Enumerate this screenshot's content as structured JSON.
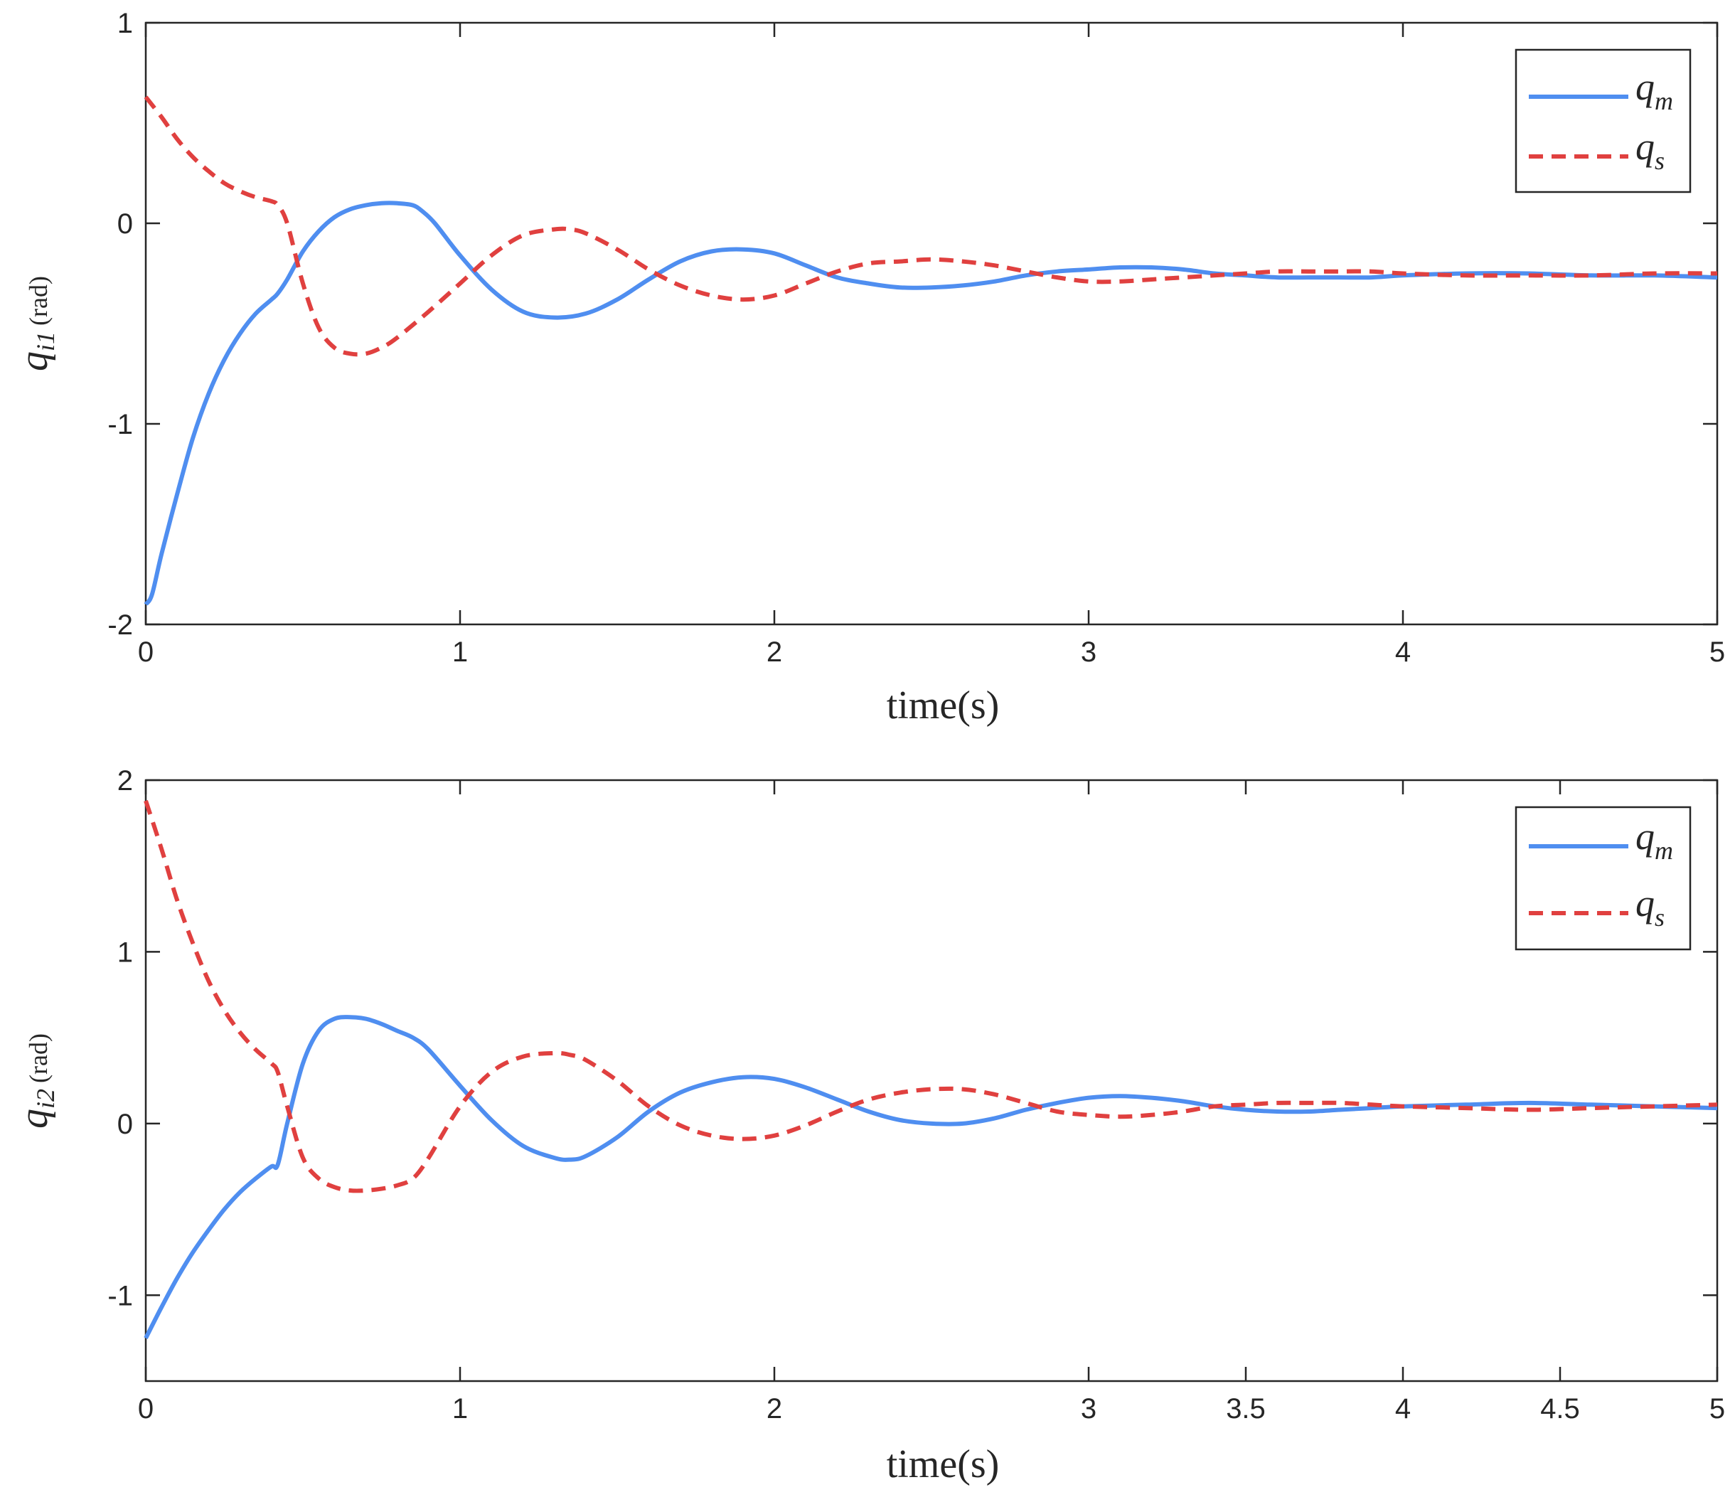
{
  "colors": {
    "q_m": "#4f8ef0",
    "q_s": "#e0403f",
    "axis": "#262626"
  },
  "chart_data": [
    {
      "type": "line",
      "xlabel": "time(s)",
      "ylabel": {
        "symbol": "q",
        "subscript": "i1",
        "unit": "(rad)"
      },
      "xlim": [
        0,
        5
      ],
      "ylim": [
        -2,
        1
      ],
      "xticks": [
        0,
        1,
        2,
        3,
        4,
        5
      ],
      "xtick_labels": [
        "0",
        "1",
        "2",
        "3",
        "4",
        "5"
      ],
      "yticks": [
        -2,
        -1,
        0,
        1
      ],
      "ytick_labels": [
        "-2",
        "-1",
        "0",
        "1"
      ],
      "grid": false,
      "legend": {
        "position": "top-right",
        "entries": [
          {
            "symbol": "q",
            "subscript": "m"
          },
          {
            "symbol": "q",
            "subscript": "s"
          }
        ]
      },
      "series": [
        {
          "key": "q_m",
          "style": "solid",
          "x": [
            0,
            0.02,
            0.05,
            0.1,
            0.15,
            0.2,
            0.25,
            0.3,
            0.35,
            0.4,
            0.42,
            0.45,
            0.5,
            0.55,
            0.6,
            0.65,
            0.7,
            0.75,
            0.8,
            0.85,
            0.88,
            0.92,
            1.0,
            1.1,
            1.2,
            1.3,
            1.4,
            1.5,
            1.6,
            1.7,
            1.8,
            1.9,
            2.0,
            2.1,
            2.2,
            2.3,
            2.4,
            2.5,
            2.6,
            2.7,
            2.8,
            2.9,
            3.0,
            3.1,
            3.2,
            3.3,
            3.4,
            3.5,
            3.6,
            3.7,
            3.8,
            3.9,
            4.0,
            4.2,
            4.4,
            4.6,
            4.8,
            5.0
          ],
          "y": [
            -1.9,
            -1.85,
            -1.65,
            -1.35,
            -1.07,
            -0.85,
            -0.68,
            -0.55,
            -0.45,
            -0.38,
            -0.35,
            -0.28,
            -0.14,
            -0.04,
            0.03,
            0.07,
            0.09,
            0.1,
            0.1,
            0.09,
            0.06,
            0.0,
            -0.16,
            -0.33,
            -0.44,
            -0.47,
            -0.45,
            -0.38,
            -0.28,
            -0.19,
            -0.14,
            -0.13,
            -0.15,
            -0.21,
            -0.27,
            -0.3,
            -0.32,
            -0.32,
            -0.31,
            -0.29,
            -0.26,
            -0.24,
            -0.23,
            -0.22,
            -0.22,
            -0.23,
            -0.25,
            -0.26,
            -0.27,
            -0.27,
            -0.27,
            -0.27,
            -0.26,
            -0.25,
            -0.25,
            -0.26,
            -0.26,
            -0.27
          ]
        },
        {
          "key": "q_s",
          "style": "dashed",
          "x": [
            0,
            0.05,
            0.1,
            0.15,
            0.2,
            0.25,
            0.3,
            0.35,
            0.4,
            0.42,
            0.45,
            0.5,
            0.55,
            0.6,
            0.65,
            0.7,
            0.75,
            0.8,
            0.9,
            1.0,
            1.1,
            1.2,
            1.3,
            1.35,
            1.4,
            1.5,
            1.6,
            1.7,
            1.8,
            1.9,
            2.0,
            2.1,
            2.2,
            2.3,
            2.4,
            2.5,
            2.6,
            2.7,
            2.8,
            2.9,
            3.0,
            3.1,
            3.2,
            3.3,
            3.4,
            3.5,
            3.6,
            3.7,
            3.8,
            3.9,
            4.0,
            4.2,
            4.4,
            4.6,
            4.8,
            5.0
          ],
          "y": [
            0.63,
            0.53,
            0.42,
            0.33,
            0.26,
            0.2,
            0.16,
            0.13,
            0.11,
            0.09,
            0.0,
            -0.3,
            -0.52,
            -0.62,
            -0.65,
            -0.65,
            -0.62,
            -0.57,
            -0.44,
            -0.3,
            -0.16,
            -0.06,
            -0.03,
            -0.03,
            -0.05,
            -0.13,
            -0.23,
            -0.31,
            -0.36,
            -0.38,
            -0.36,
            -0.3,
            -0.24,
            -0.2,
            -0.19,
            -0.18,
            -0.19,
            -0.21,
            -0.24,
            -0.27,
            -0.29,
            -0.29,
            -0.28,
            -0.27,
            -0.26,
            -0.25,
            -0.24,
            -0.24,
            -0.24,
            -0.24,
            -0.25,
            -0.26,
            -0.26,
            -0.26,
            -0.25,
            -0.25
          ]
        }
      ]
    },
    {
      "type": "line",
      "xlabel": "time(s)",
      "ylabel": {
        "symbol": "q",
        "subscript": "i2",
        "unit": "(rad)"
      },
      "xlim": [
        0,
        5
      ],
      "ylim": [
        -1.5,
        2
      ],
      "xticks": [
        0,
        1,
        2,
        3,
        3.5,
        4,
        4.5,
        5
      ],
      "xtick_labels": [
        "0",
        "1",
        "2",
        "3",
        "3.5",
        "4",
        "4.5",
        "5"
      ],
      "yticks": [
        -1,
        0,
        1,
        2
      ],
      "ytick_labels": [
        "-1",
        "0",
        "1",
        "2"
      ],
      "grid": false,
      "legend": {
        "position": "top-right",
        "entries": [
          {
            "symbol": "q",
            "subscript": "m"
          },
          {
            "symbol": "q",
            "subscript": "s"
          }
        ]
      },
      "series": [
        {
          "key": "q_m",
          "style": "solid",
          "x": [
            0,
            0.05,
            0.1,
            0.15,
            0.2,
            0.25,
            0.3,
            0.35,
            0.4,
            0.42,
            0.45,
            0.5,
            0.55,
            0.6,
            0.65,
            0.7,
            0.75,
            0.8,
            0.85,
            0.9,
            1.0,
            1.1,
            1.2,
            1.3,
            1.35,
            1.4,
            1.5,
            1.6,
            1.7,
            1.8,
            1.9,
            2.0,
            2.1,
            2.2,
            2.3,
            2.4,
            2.5,
            2.6,
            2.7,
            2.8,
            2.9,
            3.0,
            3.1,
            3.2,
            3.3,
            3.4,
            3.5,
            3.6,
            3.7,
            3.8,
            3.9,
            4.0,
            4.2,
            4.4,
            4.6,
            4.8,
            5.0
          ],
          "y": [
            -1.25,
            -1.07,
            -0.9,
            -0.75,
            -0.62,
            -0.5,
            -0.4,
            -0.32,
            -0.25,
            -0.24,
            0.0,
            0.35,
            0.54,
            0.61,
            0.62,
            0.61,
            0.58,
            0.54,
            0.5,
            0.43,
            0.22,
            0.02,
            -0.13,
            -0.2,
            -0.21,
            -0.19,
            -0.08,
            0.07,
            0.18,
            0.24,
            0.27,
            0.26,
            0.21,
            0.14,
            0.07,
            0.02,
            0.0,
            0.0,
            0.03,
            0.08,
            0.12,
            0.15,
            0.16,
            0.15,
            0.13,
            0.1,
            0.08,
            0.07,
            0.07,
            0.08,
            0.09,
            0.1,
            0.11,
            0.12,
            0.11,
            0.1,
            0.09
          ]
        },
        {
          "key": "q_s",
          "style": "dashed",
          "x": [
            0,
            0.05,
            0.1,
            0.15,
            0.2,
            0.25,
            0.3,
            0.35,
            0.4,
            0.42,
            0.45,
            0.5,
            0.55,
            0.6,
            0.65,
            0.7,
            0.75,
            0.8,
            0.85,
            0.9,
            1.0,
            1.1,
            1.2,
            1.3,
            1.35,
            1.4,
            1.5,
            1.6,
            1.7,
            1.8,
            1.9,
            2.0,
            2.1,
            2.2,
            2.3,
            2.4,
            2.5,
            2.6,
            2.7,
            2.8,
            2.9,
            3.0,
            3.1,
            3.2,
            3.3,
            3.4,
            3.5,
            3.6,
            3.7,
            3.8,
            3.9,
            4.0,
            4.2,
            4.4,
            4.6,
            4.8,
            5.0
          ],
          "y": [
            1.88,
            1.6,
            1.3,
            1.05,
            0.83,
            0.66,
            0.53,
            0.43,
            0.35,
            0.3,
            0.1,
            -0.2,
            -0.32,
            -0.37,
            -0.39,
            -0.39,
            -0.38,
            -0.36,
            -0.32,
            -0.2,
            0.1,
            0.3,
            0.39,
            0.41,
            0.4,
            0.37,
            0.25,
            0.1,
            -0.01,
            -0.07,
            -0.09,
            -0.07,
            -0.01,
            0.07,
            0.14,
            0.18,
            0.2,
            0.2,
            0.17,
            0.12,
            0.07,
            0.05,
            0.04,
            0.05,
            0.07,
            0.1,
            0.11,
            0.12,
            0.12,
            0.12,
            0.11,
            0.1,
            0.09,
            0.08,
            0.09,
            0.1,
            0.11
          ]
        }
      ]
    }
  ]
}
